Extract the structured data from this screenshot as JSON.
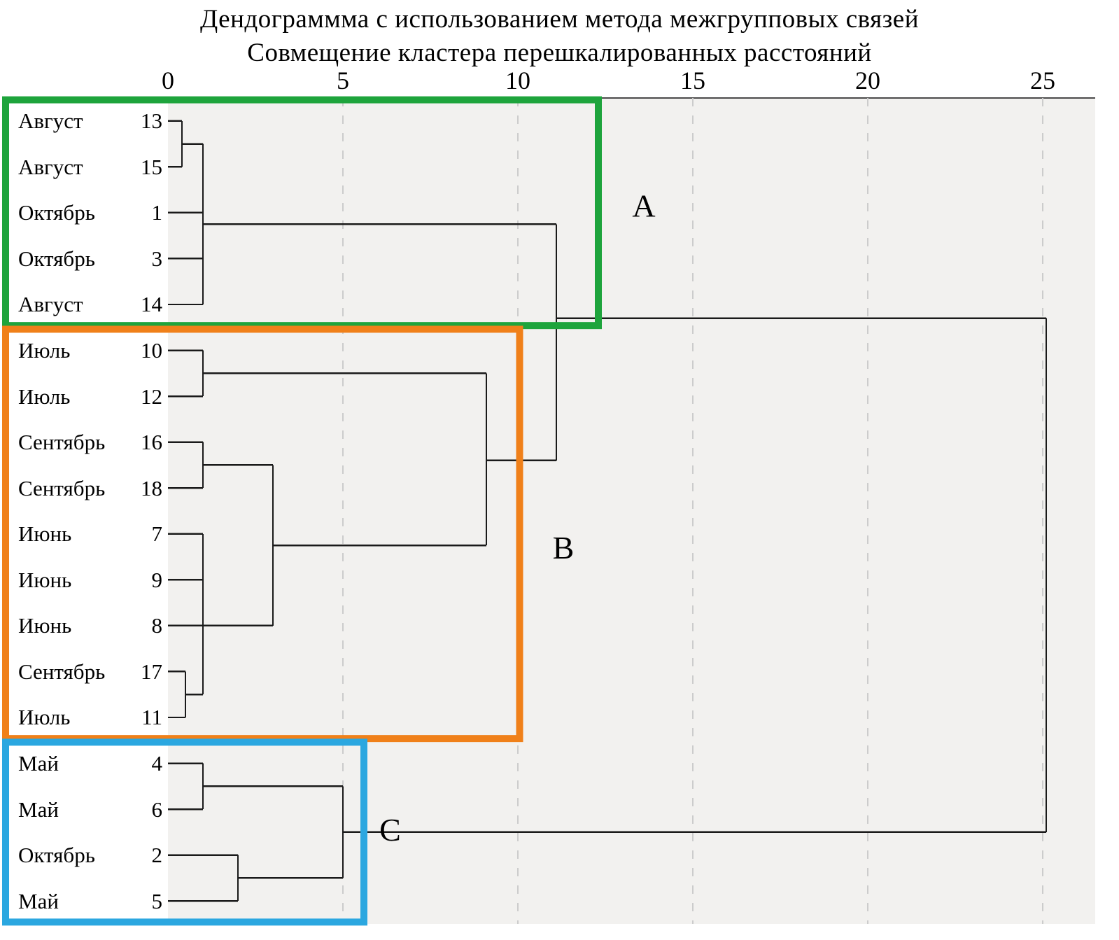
{
  "title": {
    "line1": "Дендограммма с использованием метода межгрупповых  связей",
    "line2": "Совмещение кластера перешкалированных расстояний"
  },
  "axis": {
    "ticks": [
      0,
      5,
      10,
      15,
      20,
      25
    ],
    "xlim": [
      0,
      25.5
    ]
  },
  "colors": {
    "plot_bg": "#f2f1ef",
    "grid": "#cccccc",
    "line": "#1a1a1a",
    "border": "#4a4a4a",
    "cluster_a": "#1ea43c",
    "cluster_b": "#f08019",
    "cluster_c": "#2ba7e0"
  },
  "chart_data": {
    "type": "dendrogram",
    "orientation": "horizontal",
    "leaves": [
      {
        "month": "Август",
        "num": "13"
      },
      {
        "month": "Август",
        "num": "15"
      },
      {
        "month": "Октябрь",
        "num": "1"
      },
      {
        "month": "Октябрь",
        "num": "3"
      },
      {
        "month": "Август",
        "num": "14"
      },
      {
        "month": "Июль",
        "num": "10"
      },
      {
        "month": "Июль",
        "num": "12"
      },
      {
        "month": "Сентябрь",
        "num": "16"
      },
      {
        "month": "Сентябрь",
        "num": "18"
      },
      {
        "month": "Июнь",
        "num": "7"
      },
      {
        "month": "Июнь",
        "num": "9"
      },
      {
        "month": "Июнь",
        "num": "8"
      },
      {
        "month": "Сентябрь",
        "num": "17"
      },
      {
        "month": "Июль",
        "num": "11"
      },
      {
        "month": "Май",
        "num": "4"
      },
      {
        "month": "Май",
        "num": "6"
      },
      {
        "month": "Октябрь",
        "num": "2"
      },
      {
        "month": "Май",
        "num": "5"
      }
    ],
    "clusters": [
      {
        "id": "A",
        "label": "A",
        "color": "#1ea43c",
        "row_start": 0,
        "row_end": 4,
        "extent": 12.3,
        "letter": {
          "x": 13.6,
          "row": 1.85
        }
      },
      {
        "id": "B",
        "label": "B",
        "color": "#f08019",
        "row_start": 5,
        "row_end": 13,
        "extent": 10.05,
        "letter": {
          "x": 11.3,
          "row": 9.3
        }
      },
      {
        "id": "C",
        "label": "C",
        "color": "#2ba7e0",
        "row_start": 14,
        "row_end": 17,
        "extent": 5.6,
        "letter": {
          "x": 6.35,
          "row": 15.45
        }
      }
    ],
    "key_merges": [
      {
        "note": "cluster A fully formed at distance ~1"
      },
      {
        "note": "cluster B fully formed at distance ~9"
      },
      {
        "note": "cluster C fully formed at distance ~5"
      },
      {
        "note": "A joins B at distance ~11"
      },
      {
        "note": "C joins (A+B) at distance ~25"
      }
    ],
    "segments": [
      {
        "x1": 0,
        "r1": 0,
        "x2": 0.4,
        "r2": 0
      },
      {
        "x1": 0,
        "r1": 1,
        "x2": 0.4,
        "r2": 1
      },
      {
        "x1": 0.4,
        "r1": 0,
        "x2": 0.4,
        "r2": 1
      },
      {
        "x1": 0.4,
        "r1": 0.5,
        "x2": 1,
        "r2": 0.5
      },
      {
        "x1": 0,
        "r1": 2,
        "x2": 1,
        "r2": 2
      },
      {
        "x1": 0,
        "r1": 3,
        "x2": 1,
        "r2": 3
      },
      {
        "x1": 0,
        "r1": 4,
        "x2": 1,
        "r2": 4
      },
      {
        "x1": 1,
        "r1": 0.5,
        "x2": 1,
        "r2": 4
      },
      {
        "x1": 1,
        "r1": 2.25,
        "x2": 11.1,
        "r2": 2.25
      },
      {
        "x1": 0,
        "r1": 5,
        "x2": 1,
        "r2": 5
      },
      {
        "x1": 0,
        "r1": 6,
        "x2": 1,
        "r2": 6
      },
      {
        "x1": 1,
        "r1": 5,
        "x2": 1,
        "r2": 6
      },
      {
        "x1": 1,
        "r1": 5.5,
        "x2": 9.1,
        "r2": 5.5
      },
      {
        "x1": 0,
        "r1": 7,
        "x2": 1,
        "r2": 7
      },
      {
        "x1": 0,
        "r1": 8,
        "x2": 1,
        "r2": 8
      },
      {
        "x1": 1,
        "r1": 7,
        "x2": 1,
        "r2": 8
      },
      {
        "x1": 1,
        "r1": 7.5,
        "x2": 3,
        "r2": 7.5
      },
      {
        "x1": 0,
        "r1": 9,
        "x2": 1,
        "r2": 9
      },
      {
        "x1": 0,
        "r1": 10,
        "x2": 1,
        "r2": 10
      },
      {
        "x1": 0,
        "r1": 11,
        "x2": 1,
        "r2": 11
      },
      {
        "x1": 0,
        "r1": 12,
        "x2": 0.5,
        "r2": 12
      },
      {
        "x1": 0,
        "r1": 13,
        "x2": 0.5,
        "r2": 13
      },
      {
        "x1": 0.5,
        "r1": 12,
        "x2": 0.5,
        "r2": 13
      },
      {
        "x1": 0.5,
        "r1": 12.5,
        "x2": 1,
        "r2": 12.5
      },
      {
        "x1": 1,
        "r1": 9,
        "x2": 1,
        "r2": 12.5
      },
      {
        "x1": 1,
        "r1": 11,
        "x2": 3,
        "r2": 11
      },
      {
        "x1": 3,
        "r1": 7.5,
        "x2": 3,
        "r2": 11
      },
      {
        "x1": 3,
        "r1": 9.25,
        "x2": 9.1,
        "r2": 9.25
      },
      {
        "x1": 9.1,
        "r1": 5.5,
        "x2": 9.1,
        "r2": 9.25
      },
      {
        "x1": 9.1,
        "r1": 7.4,
        "x2": 11.1,
        "r2": 7.4
      },
      {
        "x1": 11.1,
        "r1": 2.25,
        "x2": 11.1,
        "r2": 7.4
      },
      {
        "x1": 11.1,
        "r1": 4.3,
        "x2": 25.1,
        "r2": 4.3
      },
      {
        "x1": 0,
        "r1": 14,
        "x2": 1,
        "r2": 14
      },
      {
        "x1": 0,
        "r1": 15,
        "x2": 1,
        "r2": 15
      },
      {
        "x1": 1,
        "r1": 14,
        "x2": 1,
        "r2": 15
      },
      {
        "x1": 1,
        "r1": 14.5,
        "x2": 5,
        "r2": 14.5
      },
      {
        "x1": 0,
        "r1": 16,
        "x2": 2,
        "r2": 16
      },
      {
        "x1": 0,
        "r1": 17,
        "x2": 2,
        "r2": 17
      },
      {
        "x1": 2,
        "r1": 16,
        "x2": 2,
        "r2": 17
      },
      {
        "x1": 2,
        "r1": 16.5,
        "x2": 5,
        "r2": 16.5
      },
      {
        "x1": 5,
        "r1": 14.5,
        "x2": 5,
        "r2": 16.5
      },
      {
        "x1": 5,
        "r1": 15.5,
        "x2": 25.1,
        "r2": 15.5
      },
      {
        "x1": 25.1,
        "r1": 4.3,
        "x2": 25.1,
        "r2": 15.5
      }
    ]
  }
}
